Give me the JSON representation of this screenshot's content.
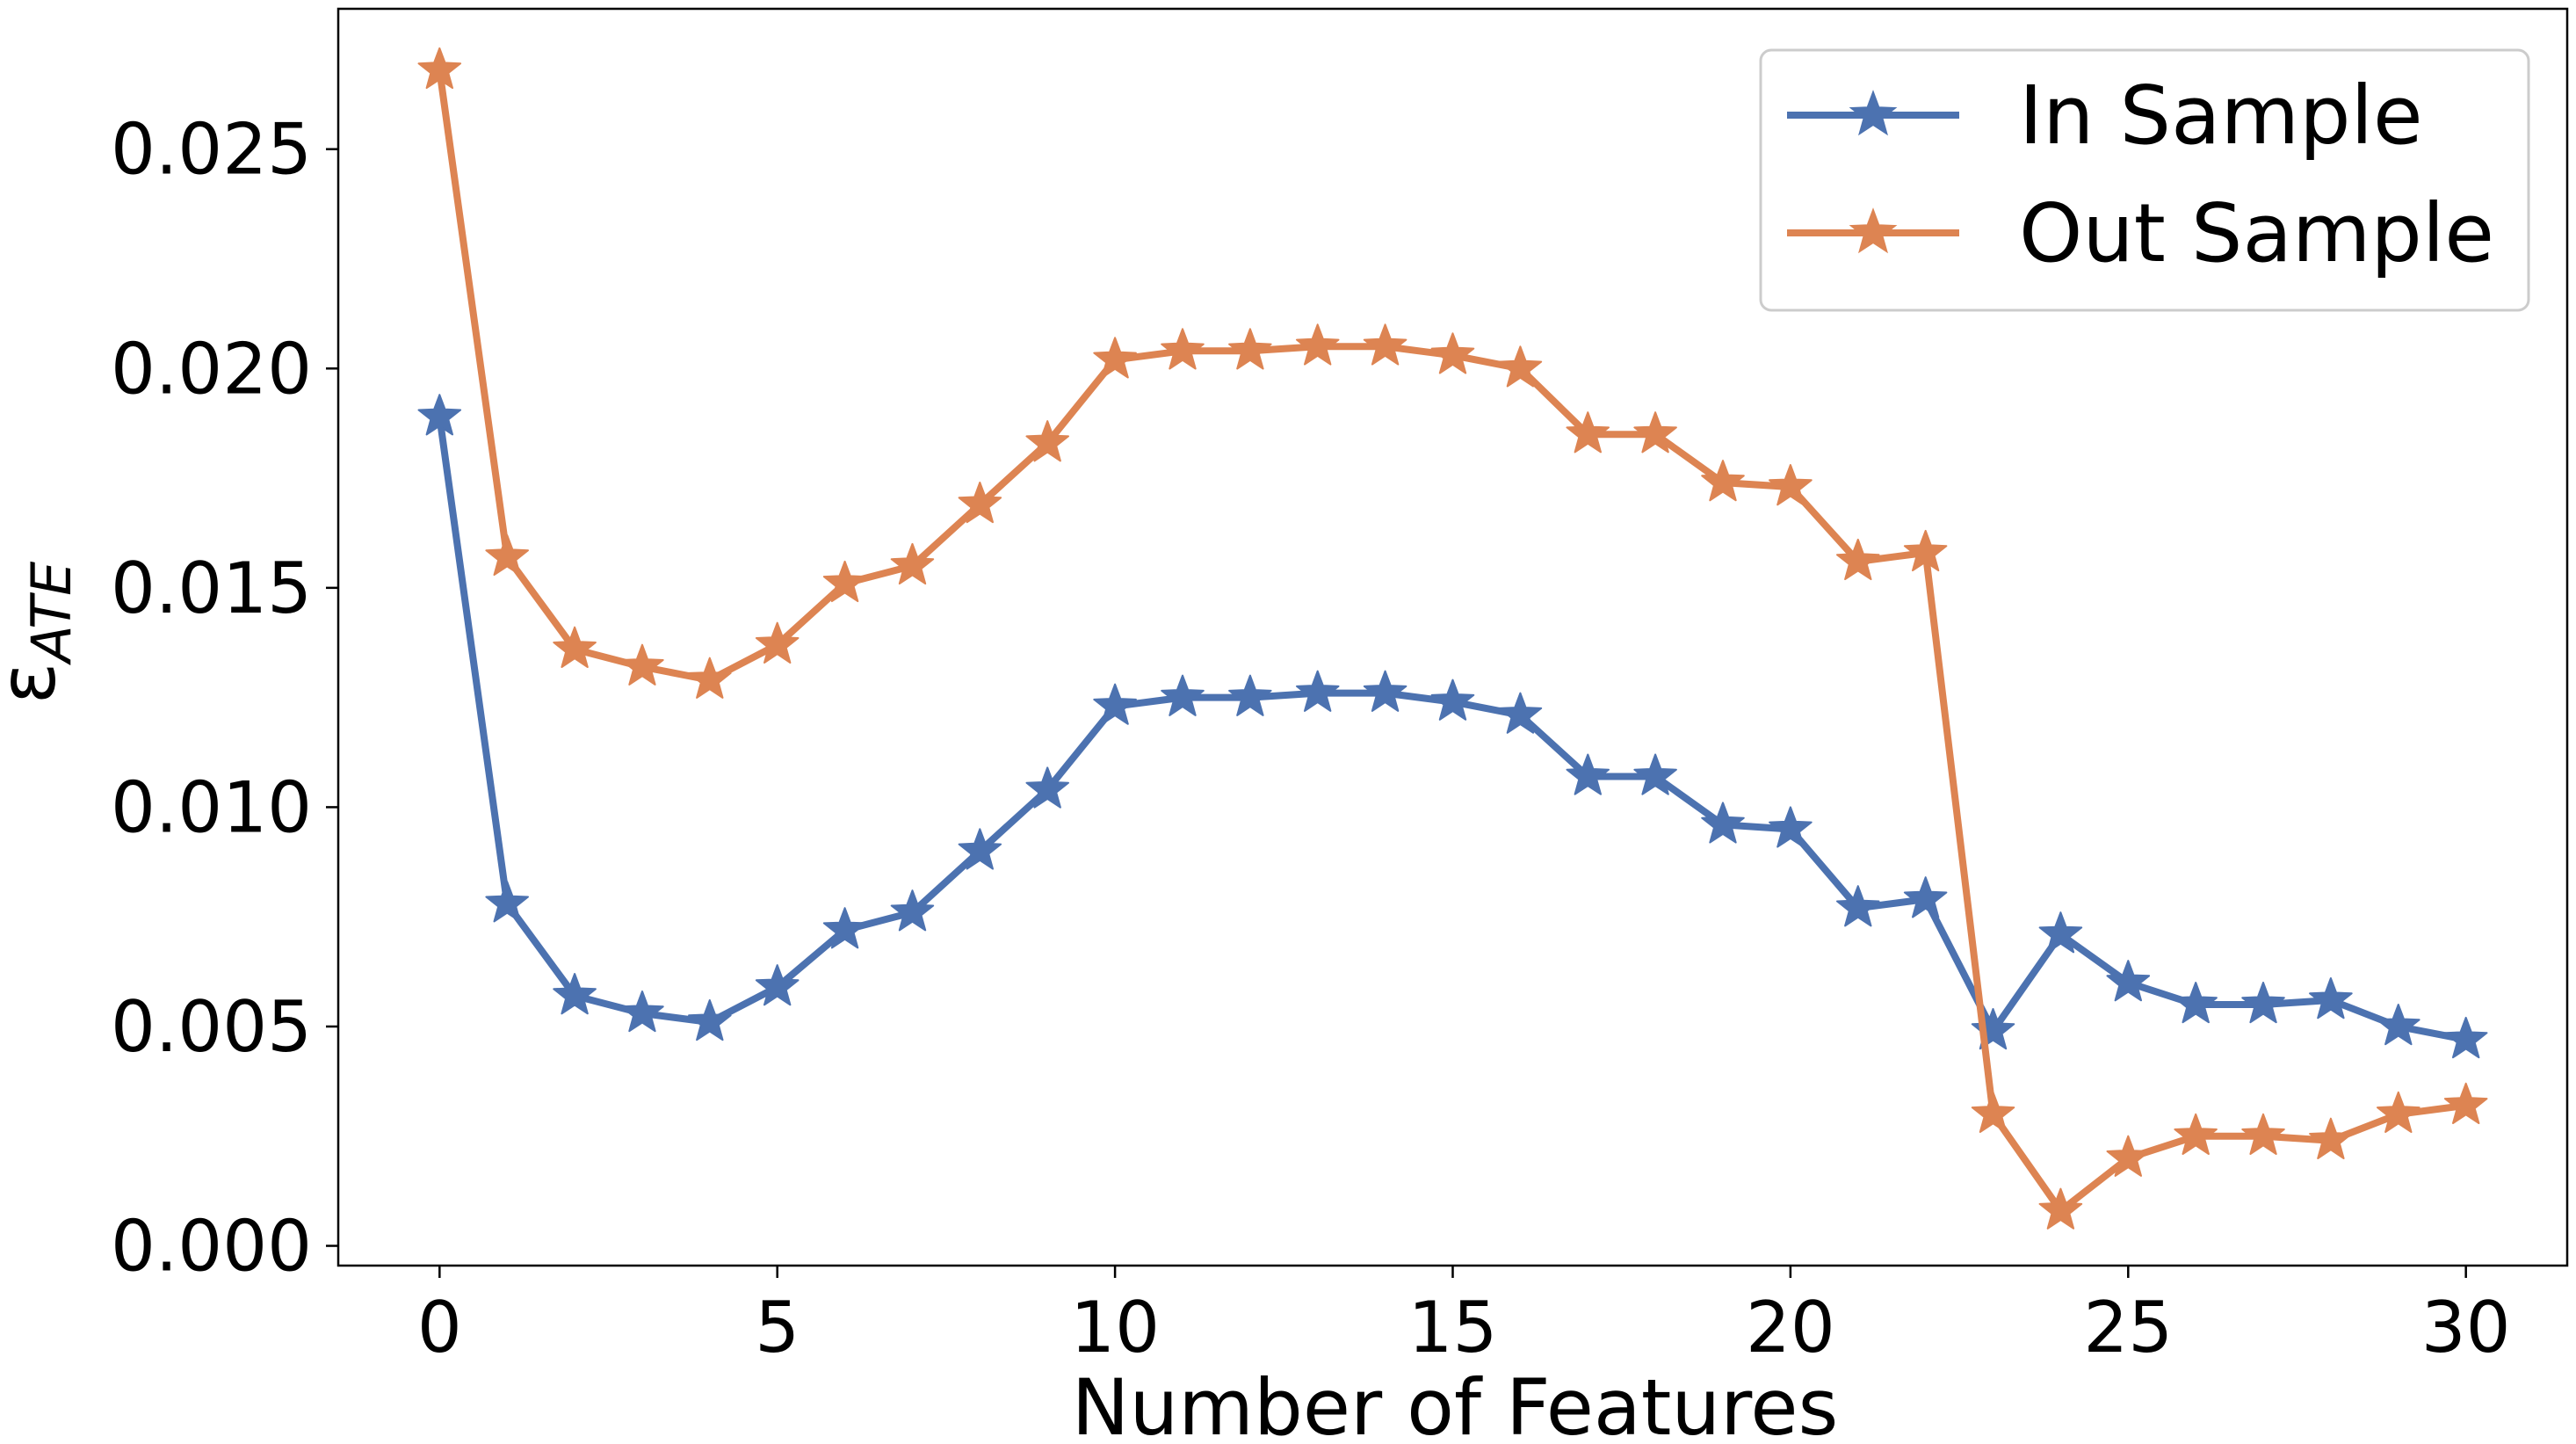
{
  "chart_data": {
    "type": "line",
    "xlabel": "Number of Features",
    "ylabel_main": "ε",
    "ylabel_sub": "ATE",
    "xlim": [
      -1.5,
      31.5
    ],
    "ylim": [
      -0.00045,
      0.0282
    ],
    "xticks": [
      0,
      5,
      10,
      15,
      20,
      25,
      30
    ],
    "xtick_labels": [
      "0",
      "5",
      "10",
      "15",
      "20",
      "25",
      "30"
    ],
    "yticks": [
      0.0,
      0.005,
      0.01,
      0.015,
      0.02,
      0.025
    ],
    "ytick_labels": [
      "0.000",
      "0.005",
      "0.010",
      "0.015",
      "0.020",
      "0.025"
    ],
    "grid": false,
    "legend_position": "top-right",
    "x": [
      0,
      1,
      2,
      3,
      4,
      5,
      6,
      7,
      8,
      9,
      10,
      11,
      12,
      13,
      14,
      15,
      16,
      17,
      18,
      19,
      20,
      21,
      22,
      23,
      24,
      25,
      26,
      27,
      28,
      29,
      30
    ],
    "series": [
      {
        "name": "In Sample",
        "color": "#4c72b0",
        "marker": "star",
        "values": [
          0.0189,
          0.0078,
          0.0057,
          0.0053,
          0.0051,
          0.0059,
          0.0072,
          0.0076,
          0.009,
          0.0104,
          0.0123,
          0.0125,
          0.0125,
          0.0126,
          0.0126,
          0.0124,
          0.0121,
          0.0107,
          0.0107,
          0.0096,
          0.0095,
          0.0077,
          0.0079,
          0.0049,
          0.0071,
          0.006,
          0.0055,
          0.0055,
          0.0056,
          0.005,
          0.0047
        ]
      },
      {
        "name": "Out Sample",
        "color": "#dd8452",
        "marker": "star",
        "values": [
          0.0268,
          0.0157,
          0.0136,
          0.0132,
          0.0129,
          0.0137,
          0.0151,
          0.0155,
          0.0169,
          0.0183,
          0.0202,
          0.0204,
          0.0204,
          0.0205,
          0.0205,
          0.0203,
          0.02,
          0.0185,
          0.0185,
          0.0174,
          0.0173,
          0.0156,
          0.0158,
          0.003,
          0.0008,
          0.002,
          0.0025,
          0.0025,
          0.0024,
          0.003,
          0.0032
        ]
      }
    ]
  }
}
